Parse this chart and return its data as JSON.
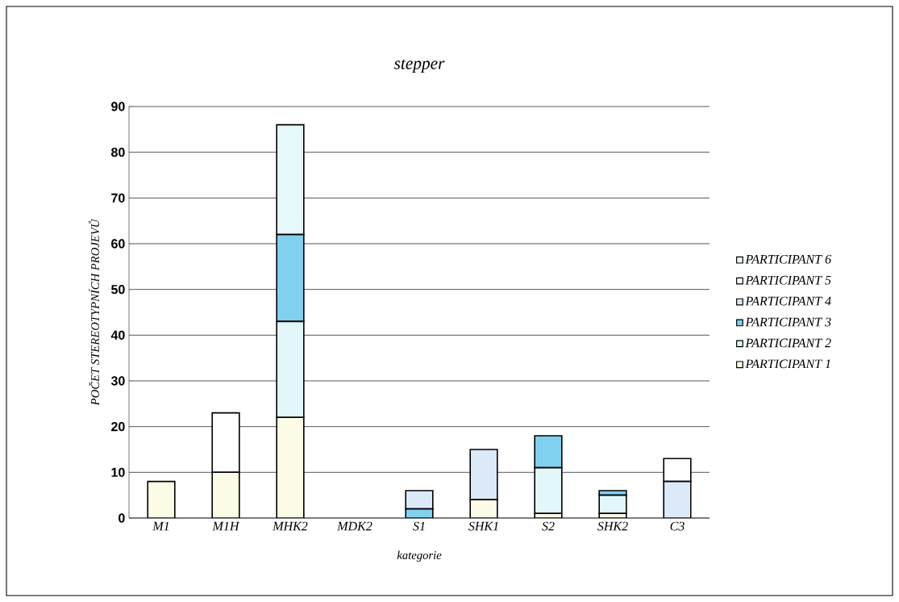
{
  "chart_data": {
    "type": "bar",
    "stacked": true,
    "title": "stepper",
    "xlabel": "kategorie",
    "ylabel": "POČET STEREOTYPNÍCH PROJEVŮ",
    "categories": [
      "M1",
      "M1H",
      "MHK2",
      "MDK2",
      "S1",
      "SHK1",
      "S2",
      "SHK2",
      "C3"
    ],
    "series": [
      {
        "name": "PARTICIPANT 1",
        "color": "#fbfbe6",
        "values": [
          8,
          10,
          22,
          0,
          0,
          4,
          1,
          1,
          0
        ]
      },
      {
        "name": "PARTICIPANT 2",
        "color": "#e2f7f9",
        "values": [
          0,
          0,
          21,
          0,
          0,
          0,
          10,
          4,
          0
        ]
      },
      {
        "name": "PARTICIPANT 3",
        "color": "#80d0f0",
        "values": [
          0,
          0,
          19,
          0,
          2,
          0,
          7,
          1,
          0
        ]
      },
      {
        "name": "PARTICIPANT 4",
        "color": "#dce9f7",
        "values": [
          0,
          0,
          0,
          0,
          4,
          11,
          0,
          0,
          8
        ]
      },
      {
        "name": "PARTICIPANT 5",
        "color": "#ffffff",
        "values": [
          0,
          13,
          0,
          0,
          0,
          0,
          0,
          0,
          5
        ]
      },
      {
        "name": "PARTICIPANT 6",
        "color": "#e6f8fa",
        "values": [
          0,
          0,
          24,
          0,
          0,
          0,
          0,
          0,
          0
        ]
      }
    ],
    "ylim": [
      0,
      90
    ],
    "yticks": [
      0,
      10,
      20,
      30,
      40,
      50,
      60,
      70,
      80,
      90
    ],
    "grid": "y",
    "legend": "right"
  }
}
